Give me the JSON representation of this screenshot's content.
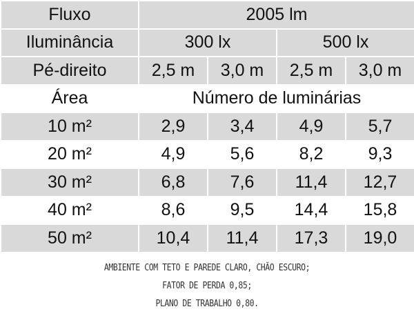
{
  "table": {
    "flux": [
      "Fluxo",
      "2005 lm"
    ],
    "illuminance": [
      "Iluminância",
      "300 lx",
      "500 lx"
    ],
    "ceiling_height": [
      "Pé-direito",
      "2,5 m",
      "3,0 m",
      "2,5 m",
      "3,0 m"
    ],
    "area_header": [
      "Área",
      "Número de luminárias"
    ],
    "rows": [
      [
        "10 m²",
        "2,9",
        "3,4",
        "4,9",
        "5,7"
      ],
      [
        "20 m²",
        "4,9",
        "5,6",
        "8,2",
        "9,3"
      ],
      [
        "30 m²",
        "6,8",
        "7,6",
        "11,4",
        "12,7"
      ],
      [
        "40 m²",
        "8,6",
        "9,5",
        "14,4",
        "15,8"
      ],
      [
        "50 m²",
        "10,4",
        "11,4",
        "17,3",
        "19,0"
      ]
    ]
  },
  "notes": [
    "AMBIENTE COM TETO E PAREDE CLARO, CHÃO ESCURO;",
    "FATOR DE PERDA 0,85;",
    "PLANO DE TRABALHO 0,80."
  ]
}
